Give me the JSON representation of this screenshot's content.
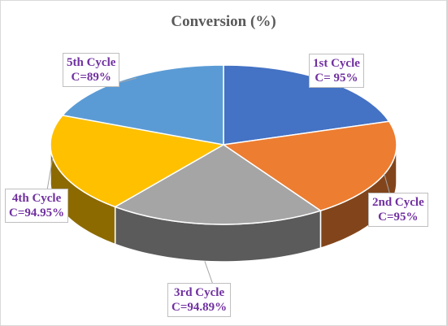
{
  "chart_data": {
    "type": "pie",
    "title": "Conversion (%)",
    "legend": "none",
    "slices": [
      {
        "label": "1st Cycle",
        "value_label": "C= 95%",
        "value": 95,
        "color": "#4472c4"
      },
      {
        "label": "2nd Cycle",
        "value_label": "C=95%",
        "value": 95,
        "color": "#ed7d31"
      },
      {
        "label": "3rd Cycle",
        "value_label": "C=94.89%",
        "value": 94.89,
        "color": "#a5a5a5"
      },
      {
        "label": "4th Cycle",
        "value_label": "C=94.95%",
        "value": 94.95,
        "color": "#ffc000"
      },
      {
        "label": "5th Cycle",
        "value_label": "C=89%",
        "value": 89,
        "color": "#5b9bd5"
      }
    ]
  }
}
